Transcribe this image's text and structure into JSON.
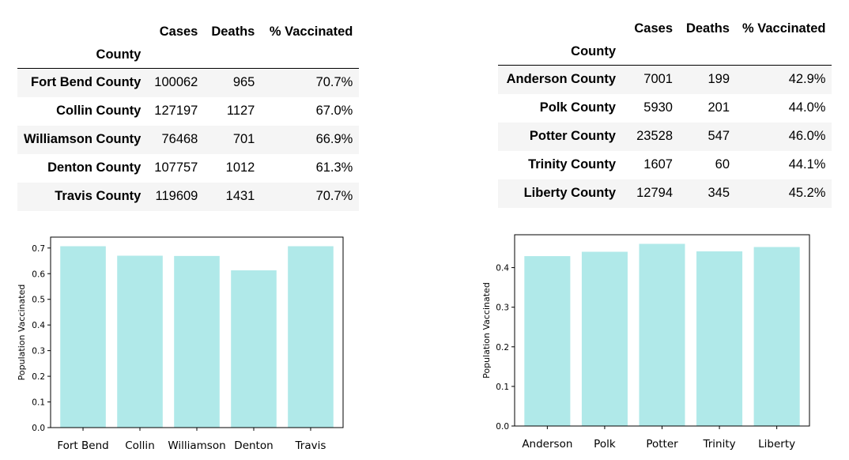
{
  "tables": [
    {
      "columns": [
        "Cases",
        "Deaths",
        "% Vaccinated"
      ],
      "index_name": "County",
      "rows": [
        {
          "county": "Fort Bend County",
          "cases": "100062",
          "deaths": "965",
          "vaccinated": "70.7%"
        },
        {
          "county": "Collin County",
          "cases": "127197",
          "deaths": "1127",
          "vaccinated": "67.0%"
        },
        {
          "county": "Williamson County",
          "cases": "76468",
          "deaths": "701",
          "vaccinated": "66.9%"
        },
        {
          "county": "Denton County",
          "cases": "107757",
          "deaths": "1012",
          "vaccinated": "61.3%"
        },
        {
          "county": "Travis County",
          "cases": "119609",
          "deaths": "1431",
          "vaccinated": "70.7%"
        }
      ]
    },
    {
      "columns": [
        "Cases",
        "Deaths",
        "% Vaccinated"
      ],
      "index_name": "County",
      "rows": [
        {
          "county": "Anderson County",
          "cases": "7001",
          "deaths": "199",
          "vaccinated": "42.9%"
        },
        {
          "county": "Polk County",
          "cases": "5930",
          "deaths": "201",
          "vaccinated": "44.0%"
        },
        {
          "county": "Potter County",
          "cases": "23528",
          "deaths": "547",
          "vaccinated": "46.0%"
        },
        {
          "county": "Trinity County",
          "cases": "1607",
          "deaths": "60",
          "vaccinated": "44.1%"
        },
        {
          "county": "Liberty County",
          "cases": "12794",
          "deaths": "345",
          "vaccinated": "45.2%"
        }
      ]
    }
  ],
  "chart_data": [
    {
      "type": "bar",
      "categories": [
        "Fort Bend",
        "Collin",
        "Williamson",
        "Denton",
        "Travis"
      ],
      "values": [
        0.707,
        0.67,
        0.669,
        0.613,
        0.707
      ],
      "ylabel": "Population Vaccinated",
      "ylim": [
        0,
        0.7425
      ],
      "yticks": [
        "0.0",
        "0.1",
        "0.2",
        "0.3",
        "0.4",
        "0.5",
        "0.6",
        "0.7"
      ],
      "bar_color": "#b0e9e9",
      "grid": false
    },
    {
      "type": "bar",
      "categories": [
        "Anderson",
        "Polk",
        "Potter",
        "Trinity",
        "Liberty"
      ],
      "values": [
        0.429,
        0.44,
        0.46,
        0.441,
        0.452
      ],
      "ylabel": "Population Vaccinated",
      "ylim": [
        0,
        0.483
      ],
      "yticks": [
        "0.0",
        "0.1",
        "0.2",
        "0.3",
        "0.4"
      ],
      "bar_color": "#b0e9e9",
      "grid": false
    }
  ]
}
